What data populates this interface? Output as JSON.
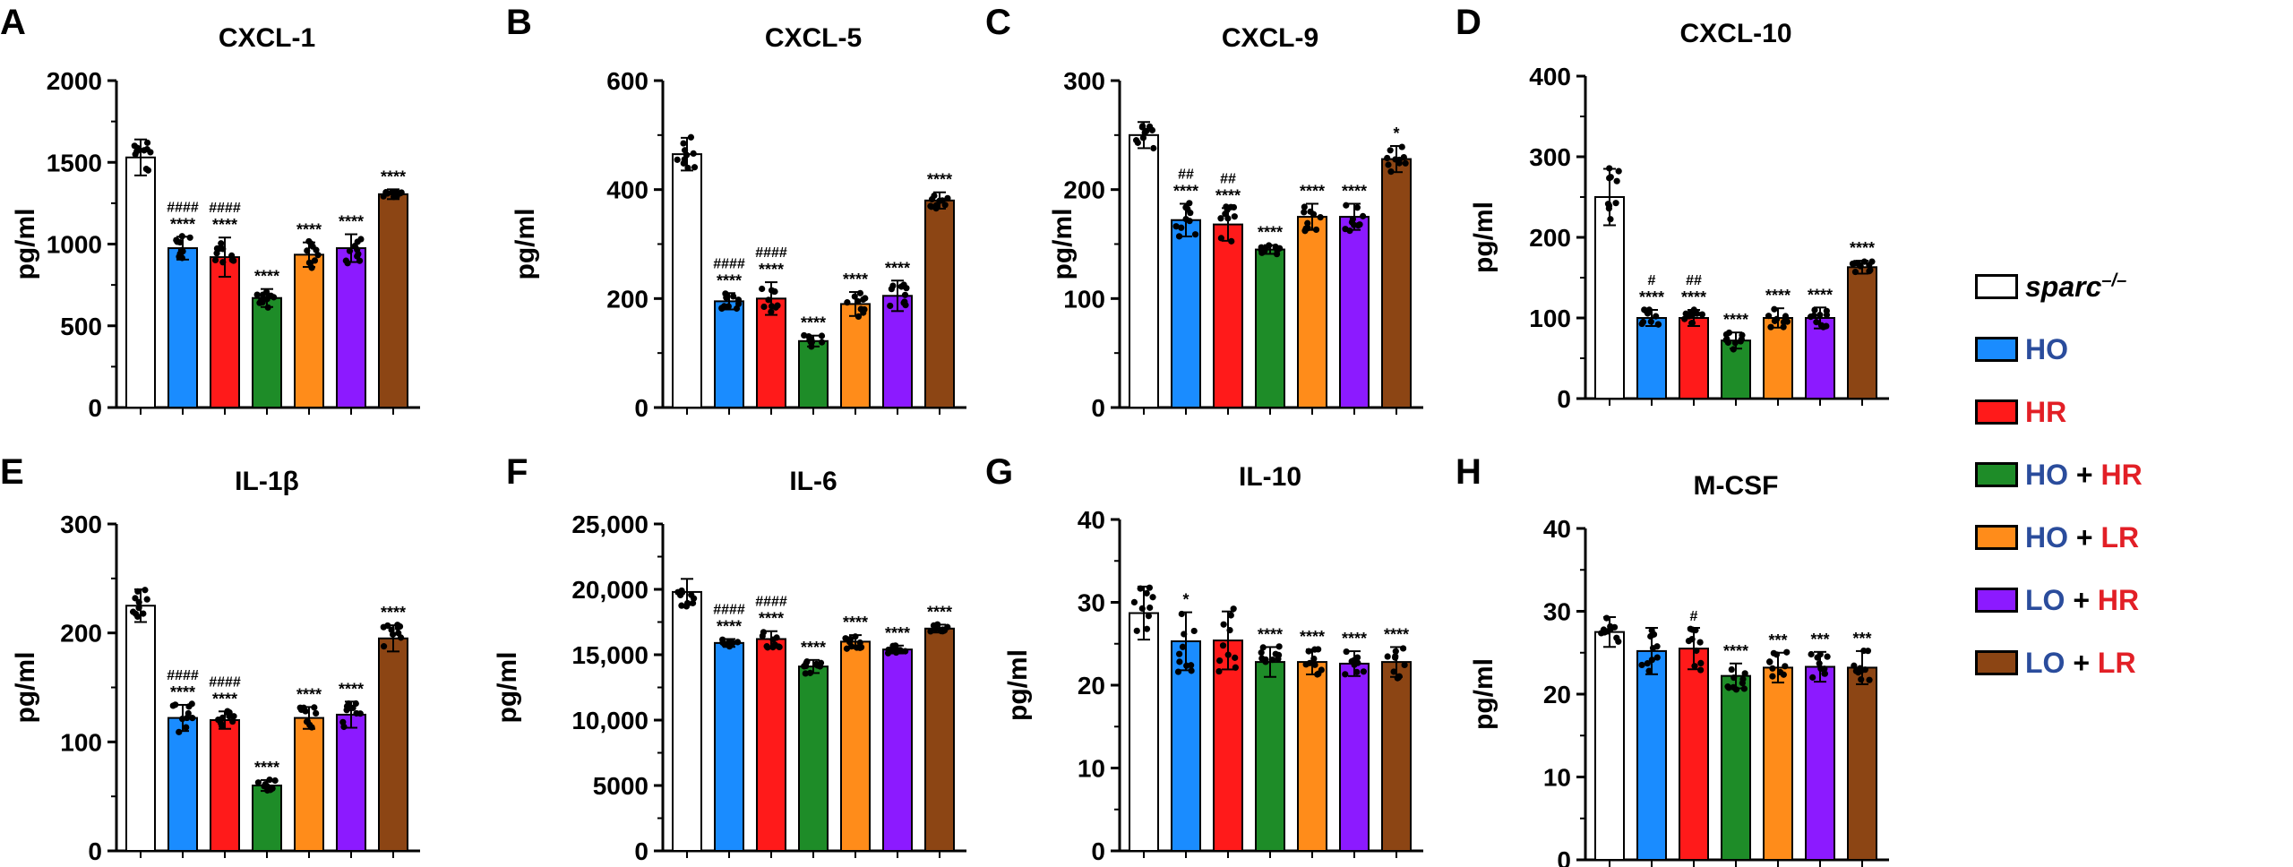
{
  "group_keys": [
    "sparc",
    "ho",
    "hr",
    "ho_hr",
    "ho_lr",
    "lo_hr",
    "lo_lr"
  ],
  "colors": {
    "sparc": "#ffffff",
    "ho": "#1a8cff",
    "hr": "#ff1a1a",
    "ho_hr": "#1e8c28",
    "ho_lr": "#ff8c1a",
    "lo_hr": "#8c1aff",
    "lo_lr": "#8c4514",
    "legend_blue": "#2a4c9c",
    "legend_red": "#e21f26"
  },
  "legend": {
    "sparc": {
      "text": "sparc",
      "sup": "–/–"
    },
    "ho": {
      "a": "HO"
    },
    "hr": {
      "a": "HR"
    },
    "ho_hr": {
      "a": "HO",
      "plus": "+",
      "b": "HR"
    },
    "ho_lr": {
      "a": "HO",
      "plus": "+",
      "b": "LR"
    },
    "lo_hr": {
      "a": "LO",
      "plus": "+",
      "b": "HR"
    },
    "lo_lr": {
      "a": "LO",
      "plus": "+",
      "b": "LR"
    }
  },
  "chart_data": [
    {
      "panel": "A",
      "title": "CXCL-1",
      "type": "bar",
      "ylabel": "pg/ml",
      "ylim": [
        0,
        2000
      ],
      "yticks": [
        "0",
        "500",
        "1000",
        "1500",
        "2000"
      ],
      "values": [
        1530,
        975,
        920,
        670,
        935,
        975,
        1305
      ],
      "errors": [
        110,
        70,
        120,
        55,
        75,
        85,
        30
      ],
      "sig": [
        "",
        "****",
        "****",
        "****",
        "****",
        "****",
        "****"
      ],
      "sig2": [
        "",
        "####",
        "####",
        "",
        "",
        "",
        ""
      ]
    },
    {
      "panel": "B",
      "title": "CXCL-5",
      "type": "bar",
      "ylabel": "pg/ml",
      "ylim": [
        0,
        600
      ],
      "yticks": [
        "0",
        "200",
        "400",
        "600"
      ],
      "values": [
        465,
        195,
        200,
        122,
        190,
        205,
        380
      ],
      "errors": [
        30,
        15,
        30,
        10,
        22,
        28,
        15
      ],
      "sig": [
        "",
        "****",
        "****",
        "****",
        "****",
        "****",
        "****"
      ],
      "sig2": [
        "",
        "####",
        "####",
        "",
        "",
        "",
        ""
      ]
    },
    {
      "panel": "C",
      "title": "CXCL-9",
      "type": "bar",
      "ylabel": "pg/ml",
      "ylim": [
        0,
        300
      ],
      "yticks": [
        "0",
        "100",
        "200",
        "300"
      ],
      "values": [
        250,
        172,
        168,
        145,
        175,
        175,
        228
      ],
      "errors": [
        12,
        15,
        15,
        4,
        12,
        12,
        12
      ],
      "sig": [
        "",
        "****",
        "****",
        "****",
        "****",
        "****",
        "*"
      ],
      "sig2": [
        "",
        "##",
        "##",
        "",
        "",
        "",
        ""
      ]
    },
    {
      "panel": "D",
      "title": "CXCL-10",
      "type": "bar",
      "ylabel": "pg/ml",
      "ylim": [
        0,
        400
      ],
      "yticks": [
        "0",
        "100",
        "200",
        "300",
        "400"
      ],
      "values": [
        250,
        100,
        100,
        72,
        100,
        100,
        163
      ],
      "errors": [
        35,
        10,
        10,
        10,
        12,
        13,
        8
      ],
      "sig": [
        "",
        "****",
        "****",
        "****",
        "****",
        "****",
        "****"
      ],
      "sig2": [
        "",
        "#",
        "##",
        "",
        "",
        "",
        ""
      ]
    },
    {
      "panel": "E",
      "title": "IL-1β",
      "type": "bar",
      "ylabel": "pg/ml",
      "ylim": [
        0,
        300
      ],
      "yticks": [
        "0",
        "100",
        "200",
        "300"
      ],
      "values": [
        225,
        122,
        120,
        60,
        122,
        125,
        195
      ],
      "errors": [
        15,
        12,
        8,
        5,
        10,
        12,
        12
      ],
      "sig": [
        "",
        "****",
        "****",
        "****",
        "****",
        "****",
        "****"
      ],
      "sig2": [
        "",
        "####",
        "####",
        "",
        "",
        "",
        ""
      ]
    },
    {
      "panel": "F",
      "title": "IL-6",
      "type": "bar",
      "ylabel": "pg/ml",
      "ylim": [
        0,
        25000
      ],
      "yticks": [
        "0",
        "5000",
        "10,000",
        "15,000",
        "20,000",
        "25,000"
      ],
      "values": [
        19800,
        15900,
        16200,
        14100,
        16000,
        15400,
        17000
      ],
      "errors": [
        1000,
        300,
        600,
        500,
        500,
        300,
        300
      ],
      "sig": [
        "",
        "****",
        "****",
        "****",
        "****",
        "****",
        "****"
      ],
      "sig2": [
        "",
        "####",
        "####",
        "",
        "",
        "",
        ""
      ]
    },
    {
      "panel": "G",
      "title": "IL-10",
      "type": "bar",
      "ylabel": "pg/ml",
      "ylim": [
        0,
        40
      ],
      "yticks": [
        "0",
        "10",
        "20",
        "30",
        "40"
      ],
      "values": [
        28.7,
        25.3,
        25.4,
        22.8,
        22.8,
        22.6,
        22.8
      ],
      "errors": [
        3.2,
        3.5,
        3.5,
        1.8,
        1.5,
        1.5,
        1.8
      ],
      "sig": [
        "",
        "*",
        "",
        "****",
        "****",
        "****",
        "****"
      ],
      "sig2": [
        "",
        "",
        "",
        "",
        "",
        "",
        ""
      ]
    },
    {
      "panel": "H",
      "title": "M-CSF",
      "type": "bar",
      "ylabel": "pg/ml",
      "ylim": [
        0,
        40
      ],
      "yticks": [
        "0",
        "10",
        "20",
        "30",
        "40"
      ],
      "values": [
        27.5,
        25.2,
        25.5,
        22.2,
        23.2,
        23.3,
        23.2
      ],
      "errors": [
        1.8,
        2.8,
        2.5,
        1.5,
        1.8,
        1.8,
        2.0
      ],
      "sig": [
        "",
        "",
        "",
        "****",
        "***",
        "***",
        "***"
      ],
      "sig2": [
        "",
        "",
        "#",
        "",
        "",
        "",
        ""
      ]
    }
  ]
}
